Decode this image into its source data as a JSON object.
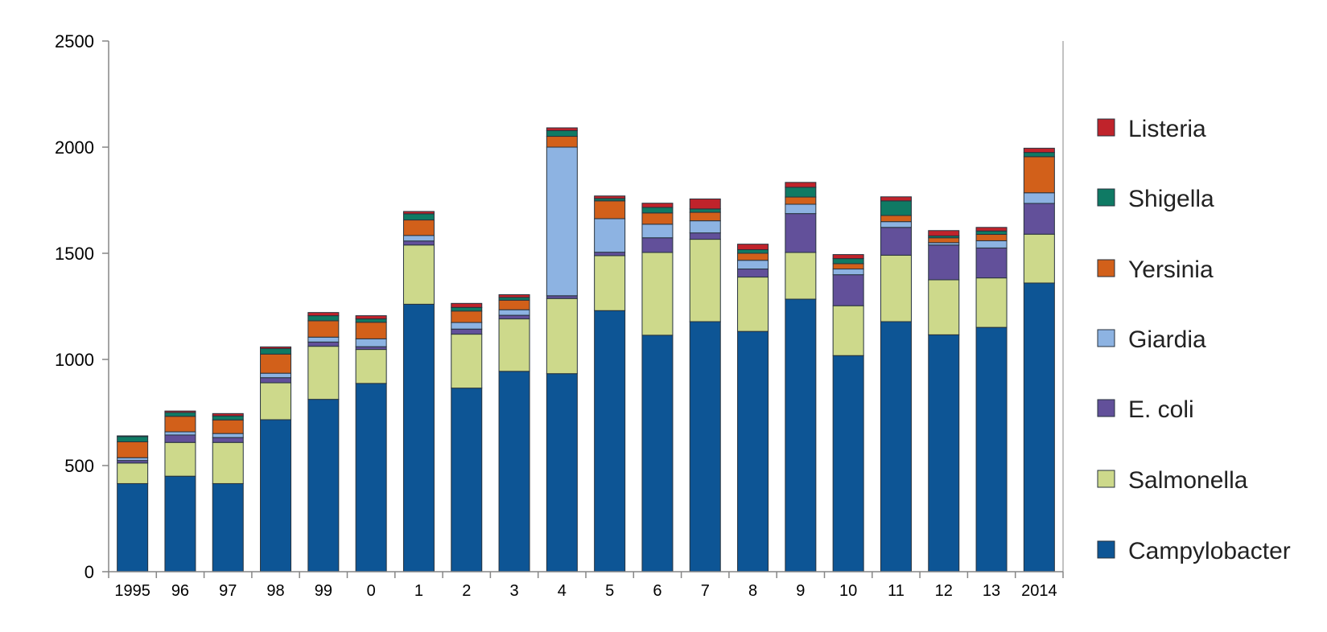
{
  "chart_data": {
    "type": "bar",
    "stacked": true,
    "title": "",
    "xlabel": "",
    "ylabel": "",
    "ylim": [
      0,
      2500
    ],
    "yticks": [
      0,
      500,
      1000,
      1500,
      2000,
      2500
    ],
    "grid": false,
    "legend_position": "right",
    "categories": [
      "1995",
      "96",
      "97",
      "98",
      "99",
      "0",
      "1",
      "2",
      "3",
      "4",
      "5",
      "6",
      "7",
      "8",
      "9",
      "10",
      "11",
      "12",
      "13",
      "2014"
    ],
    "series": [
      {
        "name": "Campylobacter",
        "color": "#0d5595",
        "values": [
          415,
          450,
          415,
          716,
          812,
          887,
          1260,
          865,
          944,
          933,
          1230,
          1114,
          1178,
          1132,
          1284,
          1018,
          1178,
          1116,
          1151,
          1360
        ]
      },
      {
        "name": "Salmonella",
        "color": "#cdd98b",
        "values": [
          97,
          159,
          194,
          174,
          250,
          160,
          279,
          254,
          247,
          354,
          259,
          390,
          388,
          256,
          220,
          235,
          313,
          259,
          233,
          230
        ]
      },
      {
        "name": "E. coli",
        "color": "#62509a",
        "values": [
          12,
          35,
          23,
          24,
          20,
          13,
          19,
          24,
          17,
          13,
          16,
          69,
          30,
          38,
          183,
          146,
          131,
          164,
          141,
          145
        ]
      },
      {
        "name": "Giardia",
        "color": "#8db3e2",
        "values": [
          13,
          15,
          19,
          21,
          23,
          37,
          26,
          31,
          26,
          700,
          158,
          64,
          57,
          41,
          44,
          27,
          27,
          11,
          34,
          50
        ]
      },
      {
        "name": "Yersinia",
        "color": "#d2601a",
        "values": [
          75,
          73,
          64,
          90,
          77,
          78,
          73,
          54,
          45,
          51,
          84,
          53,
          40,
          33,
          34,
          25,
          29,
          23,
          30,
          170
        ]
      },
      {
        "name": "Shigella",
        "color": "#0f7a64",
        "values": [
          25,
          18,
          19,
          26,
          24,
          16,
          29,
          17,
          13,
          27,
          11,
          26,
          16,
          17,
          46,
          24,
          69,
          9,
          16,
          20
        ]
      },
      {
        "name": "Listeria",
        "color": "#c0232b",
        "values": [
          3,
          7,
          11,
          8,
          15,
          15,
          11,
          19,
          13,
          13,
          12,
          20,
          47,
          26,
          23,
          19,
          19,
          25,
          17,
          20
        ]
      }
    ]
  }
}
